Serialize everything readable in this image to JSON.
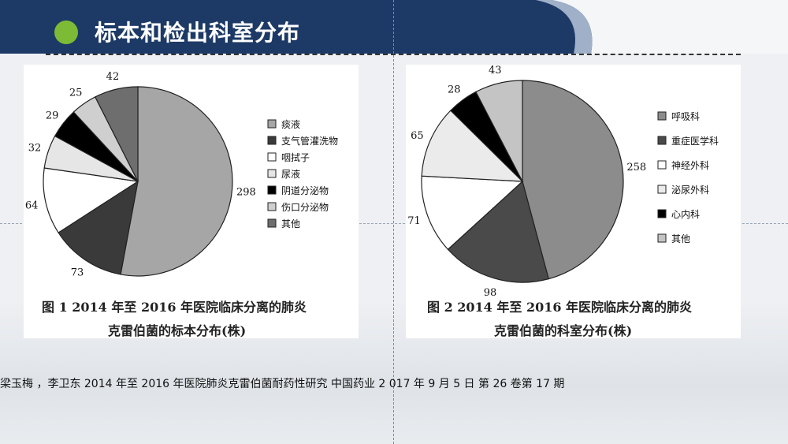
{
  "slide": {
    "title": "标本和检出科室分布"
  },
  "citation": "梁玉梅 ，李卫东    2014 年至 2016 年医院肺炎克雷伯菌耐药性研究  中国药业 2  017 年   9 月   5 日  第   26  卷第 17 期",
  "figure1": {
    "caption_line1": "图 1     2014 年至 2016 年医院临床分离的肺炎",
    "caption_line2": "克雷伯菌的标本分布(株)"
  },
  "figure2": {
    "caption_line1": "图 2     2014 年至 2016 年医院临床分离的肺炎",
    "caption_line2": "克雷伯菌的科室分布(株)"
  },
  "chart_data": [
    {
      "type": "pie",
      "title": "",
      "categories": [
        "痰液",
        "支气管灌洗物",
        "咽拭子",
        "尿液",
        "阴道分泌物",
        "伤口分泌物",
        "其他"
      ],
      "values": [
        298,
        73,
        64,
        32,
        29,
        25,
        42
      ],
      "colors": [
        "#a6a6a6",
        "#3a3a3a",
        "#ffffff",
        "#e6e6e6",
        "#000000",
        "#cfcfcf",
        "#6e6e6e"
      ],
      "legend_position": "right"
    },
    {
      "type": "pie",
      "title": "",
      "categories": [
        "呼吸科",
        "重症医学科",
        "神经外科",
        "泌尿外科",
        "心内科",
        "其他"
      ],
      "values": [
        258,
        98,
        71,
        65,
        28,
        43
      ],
      "colors": [
        "#8c8c8c",
        "#4a4a4a",
        "#ffffff",
        "#ebebeb",
        "#000000",
        "#c4c4c4"
      ],
      "legend_position": "right"
    }
  ]
}
